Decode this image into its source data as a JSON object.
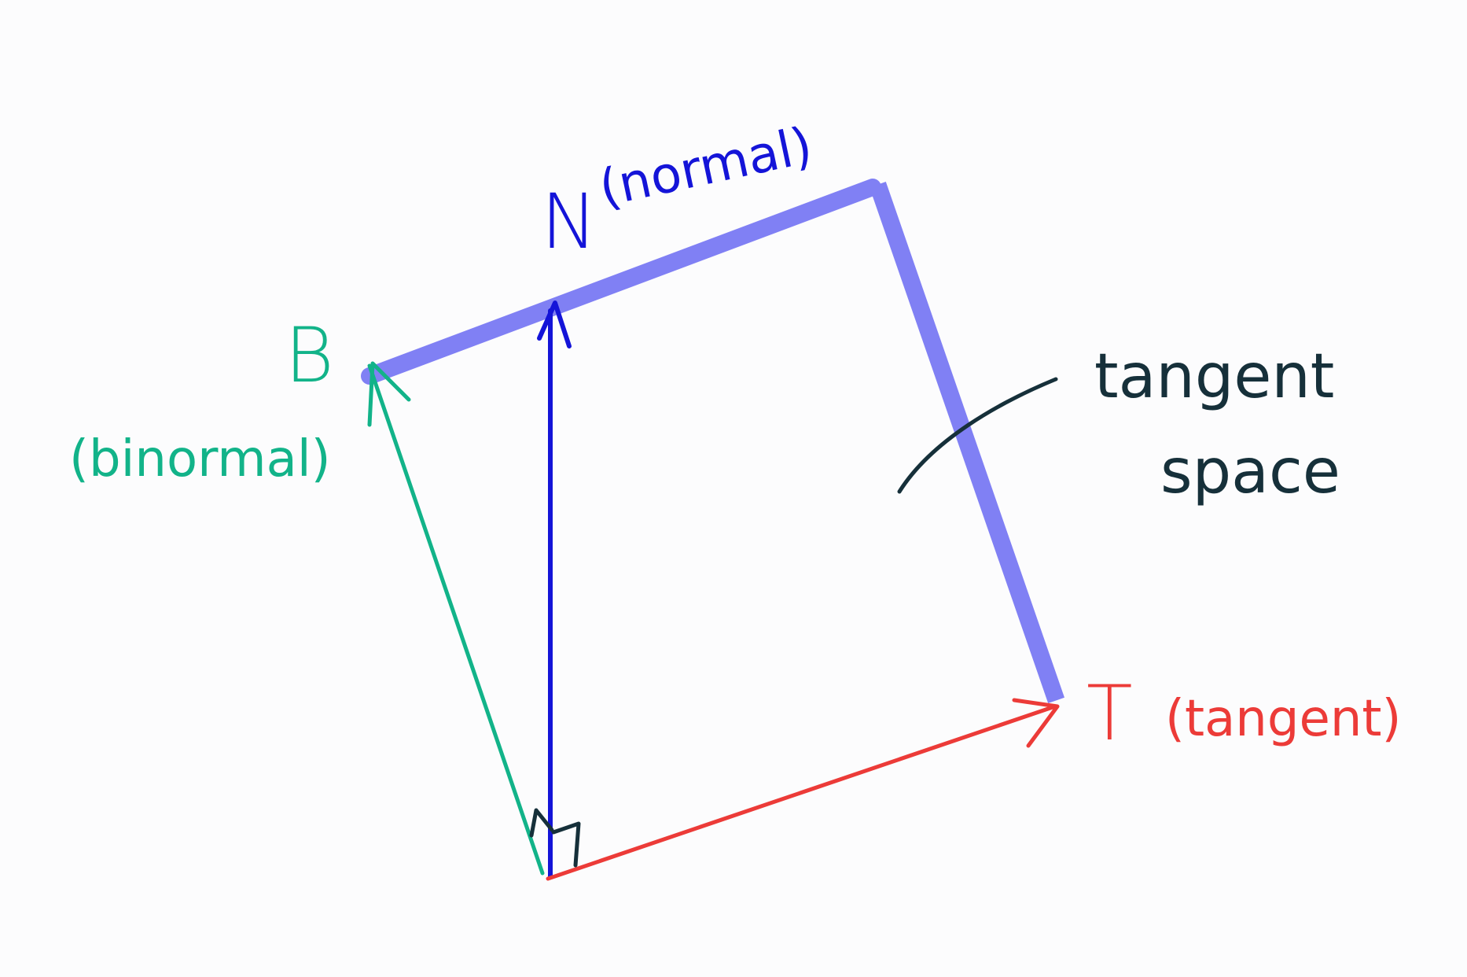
{
  "diagram": {
    "labels": {
      "normal_letter": "N",
      "normal_word": "(normal)",
      "binormal_letter": "B",
      "binormal_word": "(binormal)",
      "tangent_letter": "T",
      "tangent_word": "(tangent)",
      "plane_line1": "tangent",
      "plane_line2": "space"
    },
    "colors": {
      "background": "#fcfcfd",
      "normal": "#1414d8",
      "binormal": "#12b389",
      "tangent": "#ec3b38",
      "plane": "#8080f4",
      "annotation": "#16303a"
    }
  }
}
